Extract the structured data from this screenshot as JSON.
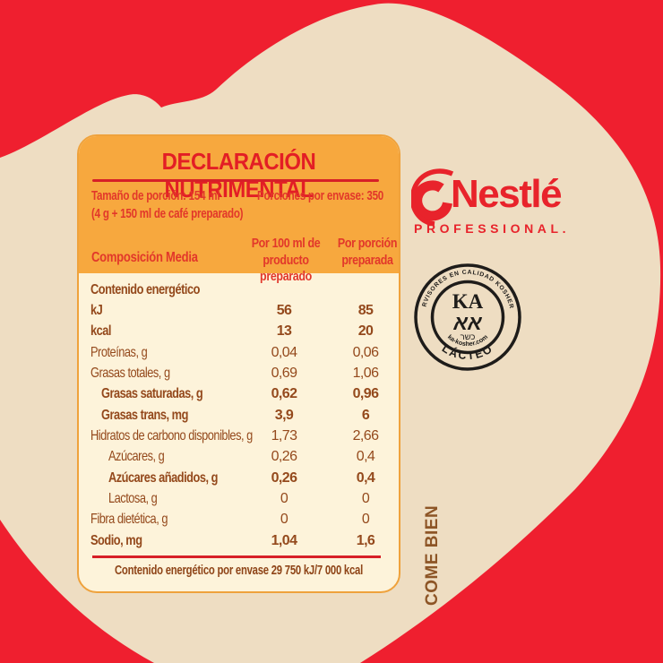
{
  "colors": {
    "background_red": "#ef1f2f",
    "heart_cream": "#eeddc2",
    "panel_header_orange": "#f7a83e",
    "panel_body_cream": "#fdf3da",
    "panel_border_orange": "#efa23c",
    "label_red": "#e31e25",
    "rule_red": "#d71f27",
    "table_brown": "#94491c",
    "brand_red": "#e8232b",
    "seal_black": "#1e1c1a",
    "tagline_brown": "#8d5526"
  },
  "panel": {
    "title": "DECLARACIÓN NUTRIMENTAL",
    "serving": {
      "size": "Tamaño de porción: 154 ml",
      "size_detail": "(4 g + 150 ml de café preparado)",
      "per_package": "Porciones por envase: 350"
    },
    "columns": {
      "composition": "Composición Media",
      "col1_line1": "Por 100 ml de",
      "col1_line2": "producto preparado",
      "col2_line1": "Por porción",
      "col2_line2": "preparada"
    },
    "rows": [
      {
        "label": "Contenido energético",
        "v1": "",
        "v2": "",
        "bold": true,
        "indent": 0
      },
      {
        "label": "kJ",
        "v1": "56",
        "v2": "85",
        "bold": true,
        "indent": 0
      },
      {
        "label": "kcal",
        "v1": "13",
        "v2": "20",
        "bold": true,
        "indent": 0
      },
      {
        "label": "Proteínas, g",
        "v1": "0,04",
        "v2": "0,06",
        "bold": false,
        "indent": 0
      },
      {
        "label": "Grasas totales, g",
        "v1": "0,69",
        "v2": "1,06",
        "bold": false,
        "indent": 0
      },
      {
        "label": "Grasas saturadas, g",
        "v1": "0,62",
        "v2": "0,96",
        "bold": true,
        "indent": 1
      },
      {
        "label": "Grasas trans, mg",
        "v1": "3,9",
        "v2": "6",
        "bold": true,
        "indent": 1
      },
      {
        "label": "Hidratos de carbono disponibles, g",
        "v1": "1,73",
        "v2": "2,66",
        "bold": false,
        "indent": 0
      },
      {
        "label": "Azúcares, g",
        "v1": "0,26",
        "v2": "0,4",
        "bold": false,
        "indent": 2
      },
      {
        "label": "Azúcares añadidos, g",
        "v1": "0,26",
        "v2": "0,4",
        "bold": true,
        "indent": 2
      },
      {
        "label": "Lactosa, g",
        "v1": "0",
        "v2": "0",
        "bold": false,
        "indent": 2
      },
      {
        "label": "Fibra dietética, g",
        "v1": "0",
        "v2": "0",
        "bold": false,
        "indent": 0
      },
      {
        "label": "Sodio, mg",
        "v1": "1,04",
        "v2": "1,6",
        "bold": true,
        "indent": 0
      }
    ],
    "footer": "Contenido energético por envase 29 750 kJ/7 000 kcal"
  },
  "brand": {
    "name": "Nestlé",
    "sub": "PROFESSIONAL."
  },
  "kosher_seal": {
    "top_text": "SUPERVISORES EN CALIDAD KOSHER S.C.",
    "ka": "KA",
    "hebrew_letters": "אא",
    "kosher_word": "כשר",
    "site": "ka-kosher.com",
    "bottom_text": "LÁCTEO"
  },
  "tagline": "COME BIEN"
}
